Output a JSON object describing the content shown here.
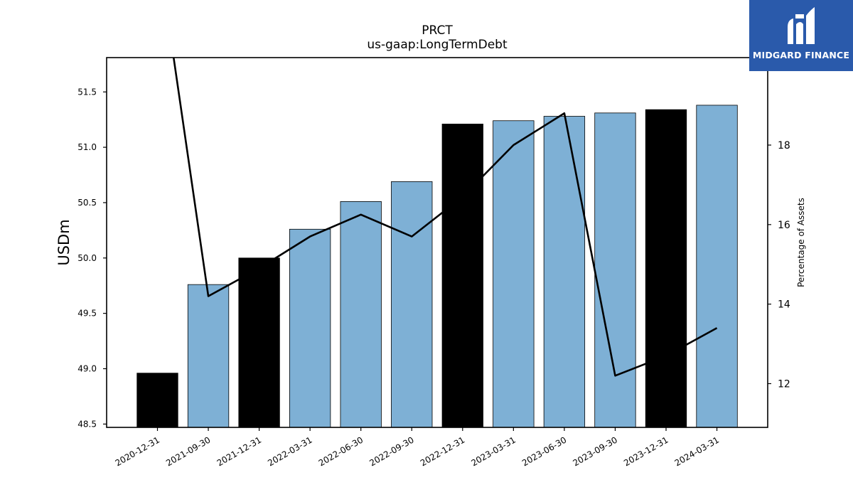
{
  "logo": {
    "text": "MIDGARD FINANCE",
    "background": "#2a5aab"
  },
  "chart_data": {
    "type": "bar",
    "title": "PRCT",
    "subtitle": "us-gaap:LongTermDebt",
    "ylabel": "USDm",
    "y2label": "Percentage of Assets",
    "categories": [
      "2020-12-31",
      "2021-09-30",
      "2021-12-31",
      "2022-03-31",
      "2022-06-30",
      "2022-09-30",
      "2022-12-31",
      "2023-03-31",
      "2023-06-30",
      "2023-09-30",
      "2023-12-31",
      "2024-03-31"
    ],
    "values": [
      48.96,
      49.76,
      50.0,
      50.26,
      50.51,
      50.69,
      51.21,
      51.24,
      51.28,
      51.31,
      51.34,
      51.38
    ],
    "bar_colors": [
      "#000000",
      "#7eb0d5",
      "#000000",
      "#7eb0d5",
      "#7eb0d5",
      "#7eb0d5",
      "#000000",
      "#7eb0d5",
      "#7eb0d5",
      "#7eb0d5",
      "#000000",
      "#7eb0d5"
    ],
    "line_series": {
      "name": "Percentage of Assets",
      "values": [
        23.0,
        14.2,
        14.9,
        15.7,
        16.25,
        15.7,
        16.7,
        18.0,
        18.8,
        12.2,
        12.7,
        13.4
      ],
      "color": "#000000"
    },
    "ylim": [
      48.47,
      51.81
    ],
    "y2lim": [
      10.9,
      20.2
    ],
    "yticks": [
      48.5,
      49.0,
      49.5,
      50.0,
      50.5,
      51.0,
      51.5
    ],
    "y2ticks": [
      12,
      14,
      16,
      18
    ],
    "grid": false
  }
}
